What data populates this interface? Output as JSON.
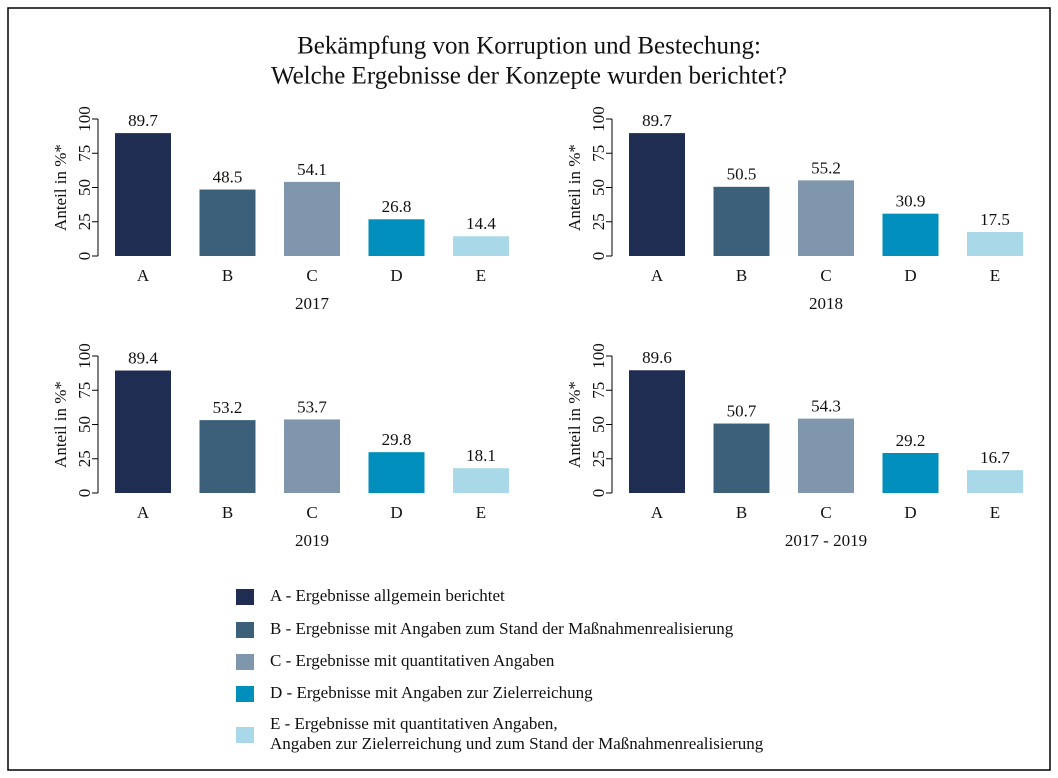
{
  "title": [
    "Bekämpfung von Korruption und Bestechung:",
    "Welche Ergebnisse der Konzepte wurden berichtet?"
  ],
  "chart_data": [
    {
      "type": "bar",
      "xlabel": "2017",
      "ylabel": "Anteil in %*",
      "categories": [
        "A",
        "B",
        "C",
        "D",
        "E"
      ],
      "values": [
        89.7,
        48.5,
        54.1,
        26.8,
        14.4
      ],
      "colors": [
        "#1f2d52",
        "#3c5f7a",
        "#7f96ad",
        "#008fbd",
        "#a9d9e8"
      ],
      "ylim": [
        0,
        100
      ],
      "yticks": [
        0,
        25,
        50,
        75,
        100
      ]
    },
    {
      "type": "bar",
      "xlabel": "2018",
      "ylabel": "Anteil in %*",
      "categories": [
        "A",
        "B",
        "C",
        "D",
        "E"
      ],
      "values": [
        89.7,
        50.5,
        55.2,
        30.9,
        17.5
      ],
      "colors": [
        "#1f2d52",
        "#3c5f7a",
        "#7f96ad",
        "#008fbd",
        "#a9d9e8"
      ],
      "ylim": [
        0,
        100
      ],
      "yticks": [
        0,
        25,
        50,
        75,
        100
      ]
    },
    {
      "type": "bar",
      "xlabel": "2019",
      "ylabel": "Anteil in %*",
      "categories": [
        "A",
        "B",
        "C",
        "D",
        "E"
      ],
      "values": [
        89.4,
        53.2,
        53.7,
        29.8,
        18.1
      ],
      "colors": [
        "#1f2d52",
        "#3c5f7a",
        "#7f96ad",
        "#008fbd",
        "#a9d9e8"
      ],
      "ylim": [
        0,
        100
      ],
      "yticks": [
        0,
        25,
        50,
        75,
        100
      ]
    },
    {
      "type": "bar",
      "xlabel": "2017 - 2019",
      "ylabel": "Anteil in %*",
      "categories": [
        "A",
        "B",
        "C",
        "D",
        "E"
      ],
      "values": [
        89.6,
        50.7,
        54.3,
        29.2,
        16.7
      ],
      "colors": [
        "#1f2d52",
        "#3c5f7a",
        "#7f96ad",
        "#008fbd",
        "#a9d9e8"
      ],
      "ylim": [
        0,
        100
      ],
      "yticks": [
        0,
        25,
        50,
        75,
        100
      ]
    }
  ],
  "legend": [
    {
      "color": "#1f2d52",
      "label": [
        "A - Ergebnisse allgemein berichtet"
      ]
    },
    {
      "color": "#3c5f7a",
      "label": [
        "B - Ergebnisse mit Angaben zum Stand der Maßnahmenrealisierung"
      ]
    },
    {
      "color": "#7f96ad",
      "label": [
        "C - Ergebnisse mit quantitativen Angaben"
      ]
    },
    {
      "color": "#008fbd",
      "label": [
        "D - Ergebnisse mit Angaben zur Zielerreichung"
      ]
    },
    {
      "color": "#a9d9e8",
      "label": [
        "E - Ergebnisse mit quantitativen Angaben,",
        "Angaben zur Zielerreichung und zum Stand der Maßnahmenrealisierung"
      ]
    }
  ]
}
